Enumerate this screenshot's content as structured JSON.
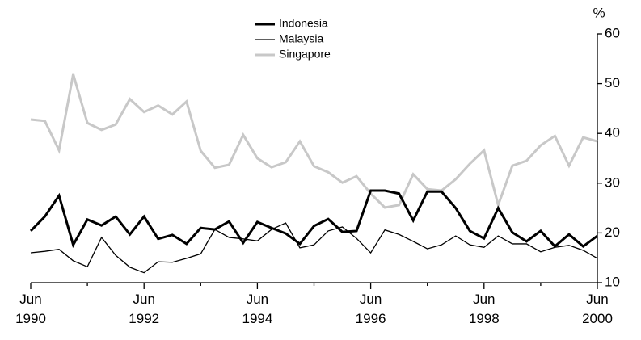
{
  "chart_data": {
    "type": "line",
    "y_unit": "%",
    "categories": [
      "Jun 1990",
      null,
      null,
      null,
      null,
      null,
      null,
      null,
      "Jun 1992",
      null,
      null,
      null,
      null,
      null,
      null,
      null,
      "Jun 1994",
      null,
      null,
      null,
      null,
      null,
      null,
      null,
      "Jun 1996",
      null,
      null,
      null,
      null,
      null,
      null,
      null,
      "Jun 1998",
      null,
      null,
      null,
      null,
      null,
      null,
      null,
      "Jun 2000"
    ],
    "series": [
      {
        "name": "Indonesia",
        "color": "#000000",
        "width": 3,
        "values": [
          20.4,
          23.3,
          27.5,
          17.6,
          22.7,
          21.5,
          23.3,
          19.7,
          23.3,
          18.8,
          19.6,
          17.8,
          21.0,
          20.7,
          22.3,
          18.0,
          22.2,
          21.0,
          19.9,
          17.8,
          21.4,
          22.8,
          20.2,
          20.4,
          28.5,
          28.5,
          27.9,
          22.5,
          28.3,
          28.3,
          25.0,
          20.4,
          18.9,
          25.0,
          20.1,
          18.3,
          20.4,
          17.3,
          19.7,
          17.3,
          19.4
        ]
      },
      {
        "name": "Malaysia",
        "color": "#000000",
        "width": 1.3,
        "values": [
          16.0,
          16.3,
          16.7,
          14.4,
          13.2,
          19.1,
          15.5,
          13.1,
          12.0,
          14.2,
          14.1,
          14.9,
          15.8,
          20.7,
          19.1,
          18.8,
          18.4,
          20.7,
          22.0,
          17.0,
          17.6,
          20.4,
          21.2,
          18.9,
          16.0,
          20.6,
          19.7,
          18.3,
          16.8,
          17.6,
          19.4,
          17.6,
          17.1,
          19.4,
          17.8,
          17.8,
          16.2,
          17.1,
          17.5,
          16.5,
          14.9
        ]
      },
      {
        "name": "Singapore",
        "color": "#c8c8c8",
        "width": 3,
        "values": [
          42.8,
          42.5,
          36.6,
          51.9,
          42.1,
          40.7,
          41.8,
          46.9,
          44.3,
          45.6,
          43.8,
          46.4,
          36.5,
          33.1,
          33.7,
          39.7,
          35.0,
          33.2,
          34.2,
          38.4,
          33.4,
          32.2,
          30.1,
          31.4,
          27.9,
          25.1,
          25.6,
          31.8,
          28.8,
          28.5,
          30.8,
          33.9,
          36.6,
          25.6,
          33.5,
          34.5,
          37.6,
          39.5,
          33.5,
          39.2,
          38.4
        ]
      }
    ],
    "ylim": [
      10,
      60
    ],
    "yticks": [
      10,
      20,
      30,
      40,
      50,
      60
    ],
    "y_axis_side": "right"
  }
}
